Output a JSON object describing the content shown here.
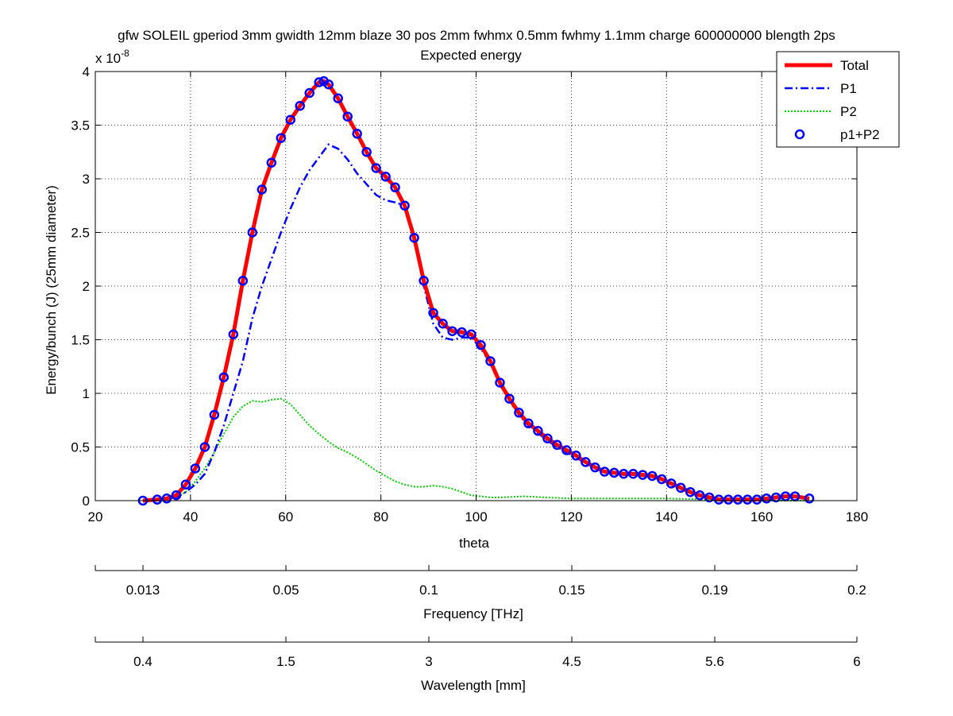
{
  "chart_data": {
    "type": "line",
    "title": "gfw SOLEIL gperiod 3mm gwidth 12mm blaze 30 pos 2mm fwhmx 0.5mm fwhmy 1.1mm charge 600000000 blength 2ps",
    "subtitle": "Expected energy",
    "xlabel": "theta",
    "ylabel": "Energy/bunch (J) (25mm diameter)",
    "y_exponent_label": "x 10",
    "y_exponent_power": "-8",
    "xlim": [
      20,
      180
    ],
    "ylim": [
      0,
      4
    ],
    "x_ticks": [
      "20",
      "40",
      "60",
      "80",
      "100",
      "120",
      "140",
      "160",
      "180"
    ],
    "y_ticks": [
      "0",
      "0.5",
      "1",
      "1.5",
      "2",
      "2.5",
      "3",
      "3.5",
      "4"
    ],
    "grid": true,
    "legend_position": "top-right",
    "series": [
      {
        "name": "Total",
        "color": "#ff0000",
        "style": "solid",
        "x": [
          30,
          33,
          35,
          37,
          39,
          41,
          43,
          45,
          47,
          49,
          51,
          53,
          55,
          57,
          59,
          61,
          63,
          65,
          67,
          68,
          69,
          71,
          73,
          75,
          77,
          79,
          81,
          83,
          85,
          87,
          89,
          91,
          93,
          95,
          97,
          99,
          101,
          103,
          105,
          107,
          109,
          111,
          113,
          115,
          117,
          119,
          121,
          123,
          125,
          127,
          129,
          131,
          133,
          135,
          137,
          139,
          141,
          143,
          145,
          147,
          149,
          151,
          153,
          155,
          157,
          159,
          161,
          163,
          165,
          167,
          170
        ],
        "y": [
          0.0,
          0.01,
          0.02,
          0.05,
          0.15,
          0.3,
          0.5,
          0.8,
          1.15,
          1.55,
          2.05,
          2.5,
          2.9,
          3.15,
          3.38,
          3.55,
          3.68,
          3.8,
          3.9,
          3.91,
          3.88,
          3.75,
          3.58,
          3.42,
          3.25,
          3.1,
          3.02,
          2.92,
          2.75,
          2.45,
          2.05,
          1.75,
          1.65,
          1.58,
          1.57,
          1.55,
          1.45,
          1.3,
          1.1,
          0.95,
          0.82,
          0.72,
          0.65,
          0.58,
          0.52,
          0.47,
          0.42,
          0.36,
          0.31,
          0.27,
          0.26,
          0.25,
          0.25,
          0.24,
          0.23,
          0.2,
          0.16,
          0.12,
          0.08,
          0.05,
          0.03,
          0.01,
          0.01,
          0.01,
          0.01,
          0.01,
          0.02,
          0.03,
          0.04,
          0.04,
          0.02
        ]
      },
      {
        "name": "P1",
        "color": "#0000ff",
        "style": "dashdot",
        "x": [
          30,
          33,
          35,
          37,
          39,
          41,
          43,
          45,
          47,
          49,
          51,
          53,
          55,
          57,
          59,
          61,
          63,
          65,
          67,
          69,
          71,
          73,
          75,
          77,
          79,
          81,
          83,
          85,
          87,
          89,
          91,
          93,
          95,
          97,
          99,
          101,
          103,
          105,
          107,
          109,
          111,
          113,
          115,
          117,
          119,
          121,
          123,
          125,
          127,
          129,
          131,
          133,
          135,
          137,
          139,
          141,
          143,
          145,
          147,
          149,
          151,
          153,
          155,
          157,
          159,
          161,
          163,
          165,
          167,
          170
        ],
        "y": [
          0.0,
          0.0,
          0.01,
          0.03,
          0.08,
          0.15,
          0.25,
          0.45,
          0.7,
          1.0,
          1.3,
          1.7,
          2.0,
          2.25,
          2.5,
          2.72,
          2.92,
          3.08,
          3.2,
          3.32,
          3.28,
          3.18,
          3.05,
          2.95,
          2.85,
          2.8,
          2.78,
          2.75,
          2.45,
          2.0,
          1.65,
          1.52,
          1.5,
          1.52,
          1.52,
          1.42,
          1.28,
          1.08,
          0.93,
          0.8,
          0.7,
          0.63,
          0.56,
          0.5,
          0.45,
          0.4,
          0.35,
          0.3,
          0.26,
          0.25,
          0.24,
          0.24,
          0.23,
          0.22,
          0.19,
          0.15,
          0.11,
          0.07,
          0.04,
          0.02,
          0.01,
          0.01,
          0.01,
          0.01,
          0.01,
          0.02,
          0.03,
          0.04,
          0.04,
          0.02
        ]
      },
      {
        "name": "P2",
        "color": "#00cc00",
        "style": "dotted",
        "x": [
          30,
          33,
          35,
          37,
          39,
          41,
          43,
          45,
          47,
          49,
          51,
          53,
          55,
          57,
          59,
          61,
          63,
          65,
          67,
          69,
          71,
          73,
          75,
          77,
          79,
          81,
          83,
          85,
          87,
          89,
          91,
          93,
          95,
          97,
          99,
          101,
          103,
          105,
          110,
          115,
          120,
          130,
          140,
          150,
          160,
          170
        ],
        "y": [
          0.0,
          0.01,
          0.01,
          0.03,
          0.08,
          0.18,
          0.3,
          0.45,
          0.62,
          0.78,
          0.88,
          0.93,
          0.92,
          0.94,
          0.95,
          0.9,
          0.8,
          0.7,
          0.62,
          0.55,
          0.49,
          0.45,
          0.4,
          0.34,
          0.28,
          0.23,
          0.18,
          0.15,
          0.13,
          0.13,
          0.14,
          0.13,
          0.11,
          0.08,
          0.05,
          0.04,
          0.03,
          0.03,
          0.04,
          0.03,
          0.02,
          0.02,
          0.02,
          0.01,
          0.0,
          0.0
        ]
      },
      {
        "name": "p1+P2",
        "color": "#0000ff",
        "style": "markers",
        "x_from": "Total",
        "y_from": "Total"
      }
    ],
    "secondary_axes": [
      {
        "label": "Frequency [THz]",
        "tick_labels": [
          "0.013",
          "0.05",
          "0.1",
          "0.15",
          "0.19",
          "0.2"
        ]
      },
      {
        "label": "Wavelength [mm]",
        "tick_labels": [
          "0.4",
          "1.5",
          "3",
          "4.5",
          "5.6",
          "6"
        ]
      }
    ]
  }
}
